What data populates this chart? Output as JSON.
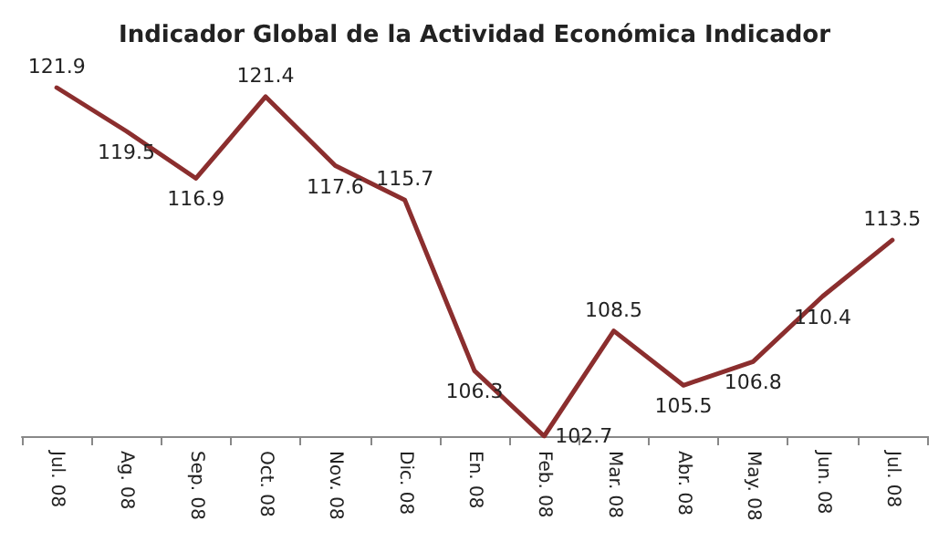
{
  "chart_data": {
    "type": "line",
    "title": "Indicador Global de la Actividad Económica Indicador",
    "categories": [
      "Jul. 08",
      "Ag. 08",
      "Sep. 08",
      "Oct. 08",
      "Nov. 08",
      "Dic. 08",
      "En. 08",
      "Feb. 08",
      "Mar. 08",
      "Abr. 08",
      "May. 08",
      "Jun. 08",
      "Jul. 08"
    ],
    "series": [
      {
        "color": "#8b2e2e",
        "values": [
          121.9,
          119.5,
          116.9,
          121.4,
          117.6,
          115.7,
          106.3,
          102.7,
          108.5,
          105.5,
          106.8,
          110.4,
          113.5
        ]
      }
    ],
    "data_labels": true,
    "marker": "none",
    "line_style": "solid",
    "grid": false
  }
}
